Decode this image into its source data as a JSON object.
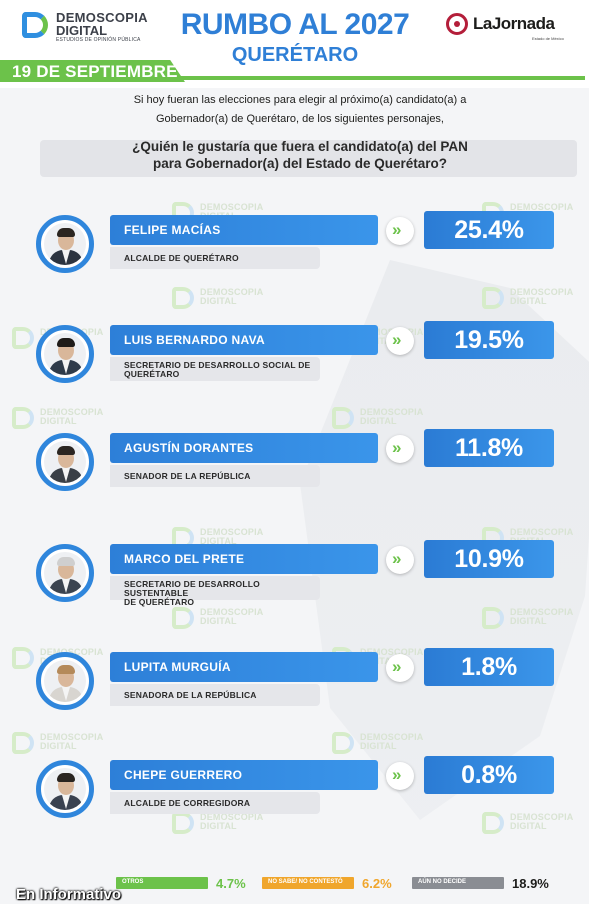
{
  "header": {
    "logo_line1": "DEMOSCOPIA",
    "logo_line2": "DIGITAL",
    "logo_line3": "ESTUDIOS DE OPINIÓN PÚBLICA",
    "title": "RUMBO AL 2027",
    "subtitle": "QUERÉTARO",
    "partner_name": "LaJornada",
    "partner_sub": "Estado de México"
  },
  "date": "19 DE SEPTIEMBRE",
  "intro_line1": "Si hoy fueran las elecciones para elegir al próximo(a) candidato(a) a",
  "intro_line2": "Gobernador(a) de Querétaro, de los siguientes personajes,",
  "question_line1": "¿Quién le gustaría que fuera el candidato(a) del PAN",
  "question_line2": "para Gobernador(a) del Estado de Querétaro?",
  "watermark_line1": "DEMOSCOPIA",
  "watermark_line2": "DIGITAL",
  "arrow_glyph": "»",
  "colors": {
    "brand_blue": "#2f86dc",
    "brand_green": "#6cc24a",
    "footer_others": "#6cc24a",
    "footer_nosabe": "#f0a62c",
    "footer_undecided": "#8a8d93"
  },
  "chart_data": {
    "type": "bar",
    "title": "¿Quién le gustaría que fuera el candidato(a) del PAN para Gobernador(a) del Estado de Querétaro?",
    "unit": "%",
    "candidates": [
      {
        "name": "FELIPE MACÍAS",
        "role_line1": "ALCALDE DE QUERÉTARO",
        "role_line2": "",
        "value": 25.4,
        "label": "25.4%"
      },
      {
        "name": "LUIS BERNARDO NAVA",
        "role_line1": "SECRETARIO DE DESARROLLO SOCIAL DE",
        "role_line2": "QUERÉTARO",
        "value": 19.5,
        "label": "19.5%"
      },
      {
        "name": "AGUSTÍN DORANTES",
        "role_line1": "SENADOR DE LA REPÚBLICA",
        "role_line2": "",
        "value": 11.8,
        "label": "11.8%"
      },
      {
        "name": "MARCO DEL PRETE",
        "role_line1": "SECRETARIO DE DESARROLLO SUSTENTABLE",
        "role_line2": "DE QUERÉTARO",
        "value": 10.9,
        "label": "10.9%"
      },
      {
        "name": "LUPITA MURGUÍA",
        "role_line1": "SENADORA DE LA REPÚBLICA",
        "role_line2": "",
        "value": 1.8,
        "label": "1.8%"
      },
      {
        "name": "CHEPE GUERRERO",
        "role_line1": "ALCALDE DE CORREGIDORA",
        "role_line2": "",
        "value": 0.8,
        "label": "0.8%"
      }
    ],
    "footer": [
      {
        "label": "OTROS",
        "value": 4.7,
        "text": "4.7%"
      },
      {
        "label": "NO SABE/ NO CONTESTÓ",
        "value": 6.2,
        "text": "6.2%"
      },
      {
        "label": "AÚN NO DECIDE",
        "value": 18.9,
        "text": "18.9%"
      }
    ]
  },
  "source": "En Informativo"
}
